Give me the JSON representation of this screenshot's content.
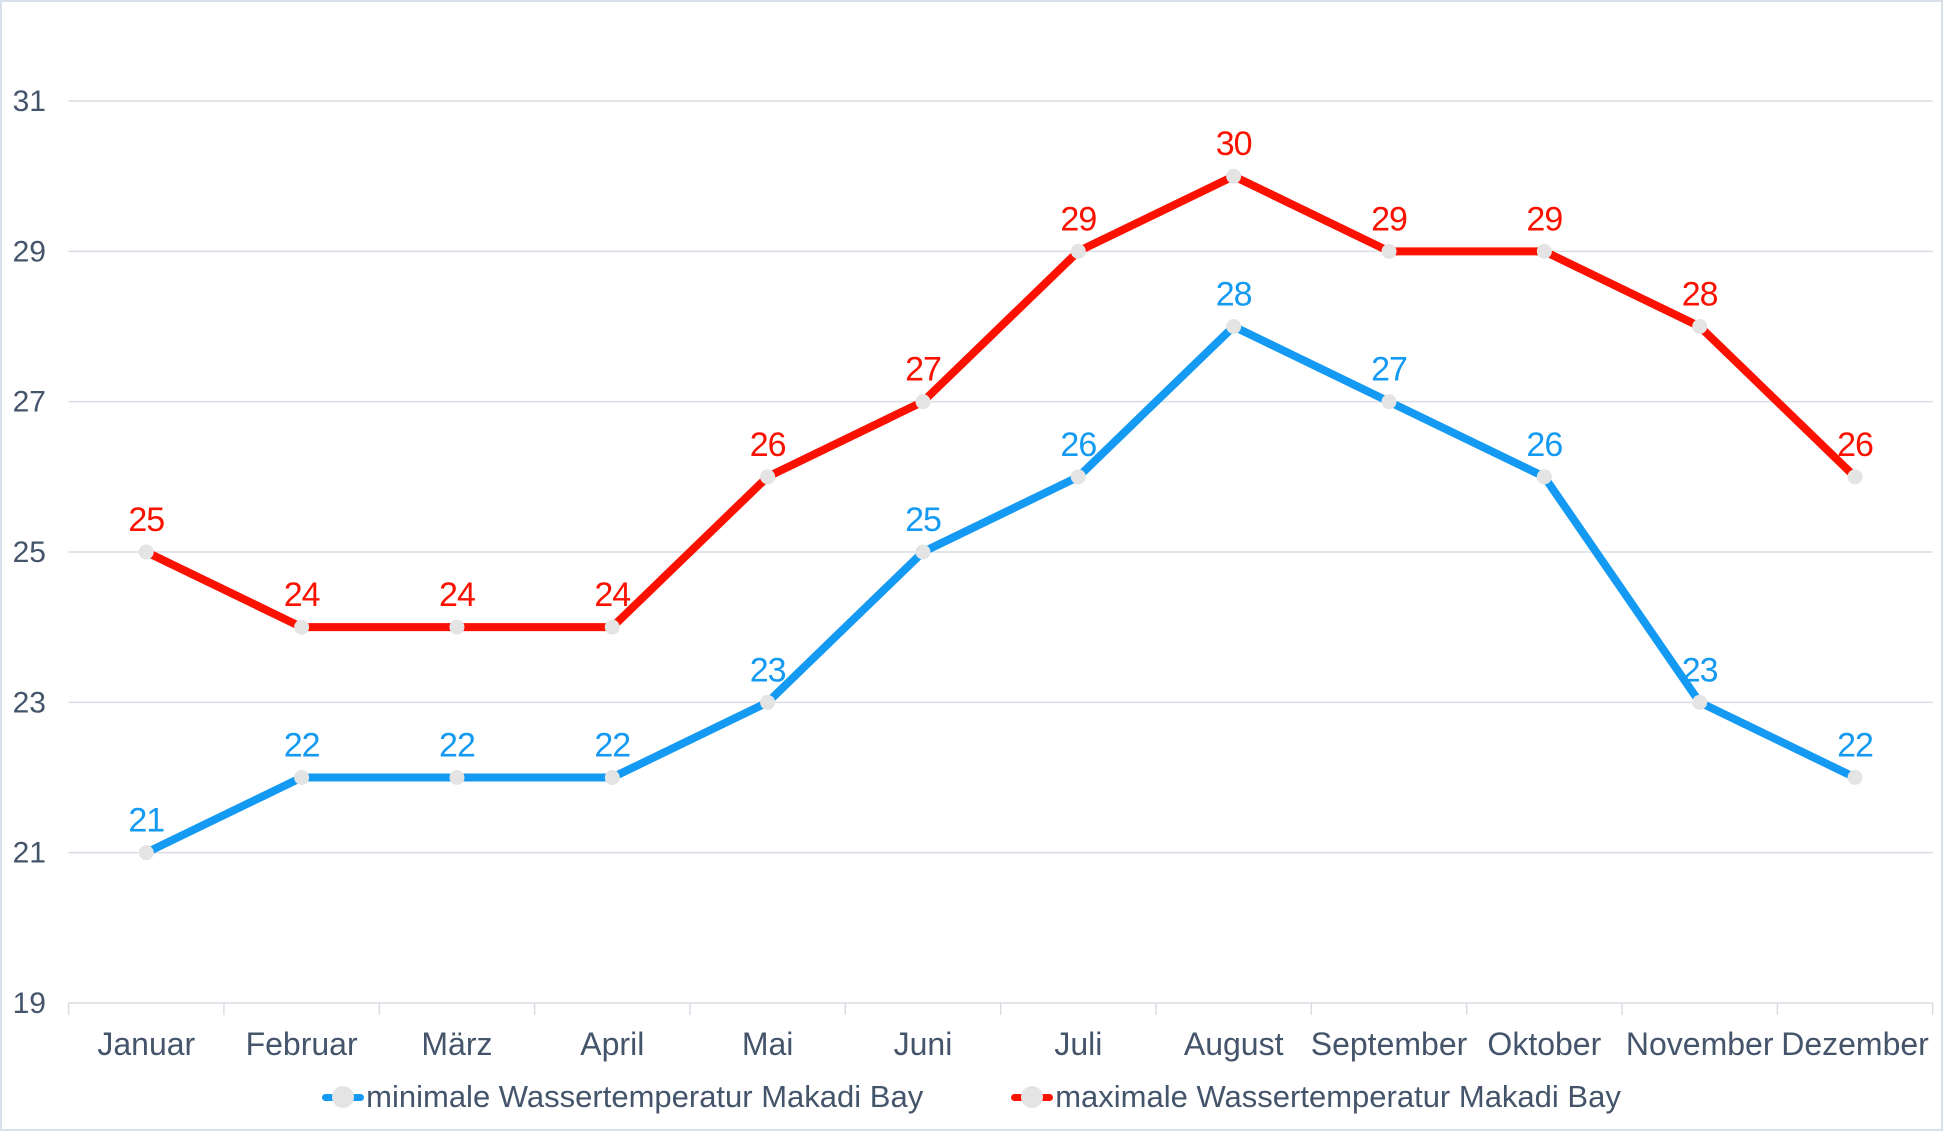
{
  "chart_data": {
    "type": "line",
    "title": "",
    "xlabel": "",
    "ylabel": "",
    "categories": [
      "Januar",
      "Februar",
      "März",
      "April",
      "Mai",
      "Juni",
      "Juli",
      "August",
      "September",
      "Oktober",
      "November",
      "Dezember"
    ],
    "series": [
      {
        "name": "minimale Wassertemperatur Makadi Bay",
        "color": "#149af2",
        "values": [
          21,
          22,
          22,
          22,
          23,
          25,
          26,
          28,
          27,
          26,
          23,
          22
        ]
      },
      {
        "name": "maximale Wassertemperatur Makadi Bay",
        "color": "#fa1100",
        "values": [
          25,
          24,
          24,
          24,
          26,
          27,
          29,
          30,
          29,
          29,
          28,
          26
        ]
      }
    ],
    "ylim": [
      19,
      31
    ],
    "y_ticks": [
      19,
      21,
      23,
      25,
      27,
      29,
      31
    ],
    "grid": true,
    "legend_position": "bottom",
    "data_labels": true,
    "styles": {
      "marker_color": "#e4e4e4",
      "grid_color": "#d8dde4",
      "axis_text_color": "#44546A",
      "border_color": "#d9e0ea"
    }
  }
}
